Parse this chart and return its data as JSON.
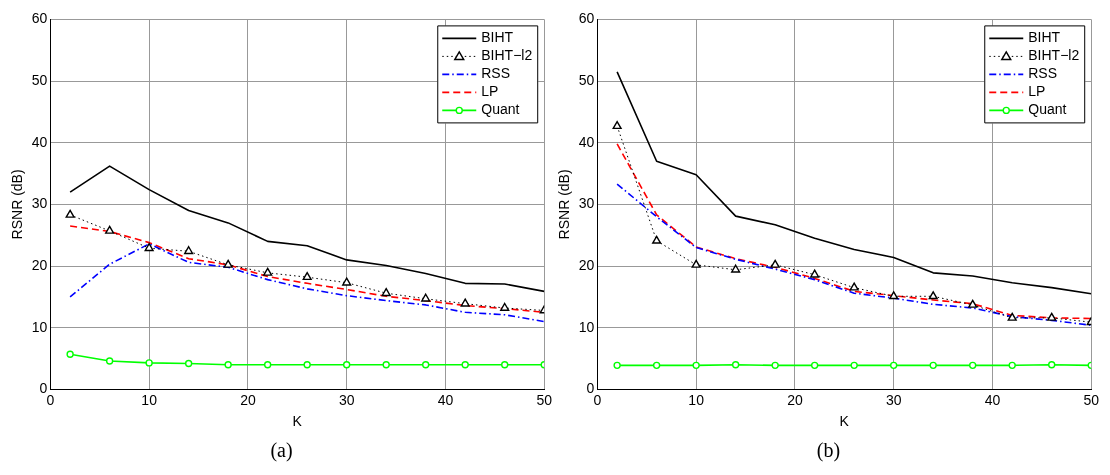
{
  "chart_data": [
    {
      "type": "line",
      "xlabel": "K",
      "ylabel": "RSNR (dB)",
      "annotations": [
        "(a)"
      ],
      "x": [
        2,
        6,
        10,
        14,
        18,
        22,
        26,
        30,
        34,
        38,
        42,
        46,
        50
      ],
      "xlim": [
        0,
        50
      ],
      "xticks": [
        0,
        10,
        20,
        30,
        40,
        50
      ],
      "ylim": [
        0,
        60
      ],
      "yticks": [
        0,
        10,
        20,
        30,
        40,
        50,
        60
      ],
      "grid": true,
      "legend": "top right",
      "series": [
        {
          "name": "BIHT",
          "color": "#000000",
          "line_style": "solid",
          "marker": "none",
          "values": [
            32,
            36.2,
            32.4,
            29,
            27,
            24,
            23.3,
            21,
            20.1,
            18.8,
            17.2,
            17.1,
            15.9
          ]
        },
        {
          "name": "BIHT−l2",
          "color": "#000000",
          "line_style": "dotted",
          "marker": "triangle",
          "values": [
            28.3,
            25.7,
            22.9,
            22.4,
            20.2,
            18.9,
            18.2,
            17.3,
            15.6,
            14.7,
            13.9,
            13.2,
            12.8
          ]
        },
        {
          "name": "RSS",
          "color": "#0000ff",
          "line_style": "dashdot",
          "marker": "none",
          "values": [
            15,
            20.3,
            23.6,
            20.6,
            19.8,
            17.8,
            16.3,
            15.2,
            14.4,
            13.7,
            12.5,
            12.1,
            11
          ]
        },
        {
          "name": "LP",
          "color": "#ff0000",
          "line_style": "dashed",
          "marker": "none",
          "values": [
            26.5,
            25.6,
            23.8,
            21.2,
            20.2,
            18.3,
            17.2,
            16.2,
            15.1,
            14.4,
            13.6,
            13.1,
            12.5
          ]
        },
        {
          "name": "Quant",
          "color": "#00ff00",
          "line_style": "solid",
          "marker": "circle",
          "values": [
            5.7,
            4.6,
            4.3,
            4.2,
            4,
            4,
            4,
            4,
            4,
            4,
            4,
            4,
            4
          ]
        }
      ]
    },
    {
      "type": "line",
      "xlabel": "K",
      "ylabel": "RSNR (dB)",
      "annotations": [
        "(b)"
      ],
      "x": [
        2,
        6,
        10,
        14,
        18,
        22,
        26,
        30,
        34,
        38,
        42,
        46,
        50
      ],
      "xlim": [
        0,
        50
      ],
      "xticks": [
        0,
        10,
        20,
        30,
        40,
        50
      ],
      "ylim": [
        0,
        60
      ],
      "yticks": [
        0,
        10,
        20,
        30,
        40,
        50,
        60
      ],
      "grid": true,
      "legend": "top right",
      "series": [
        {
          "name": "BIHT",
          "color": "#000000",
          "line_style": "solid",
          "marker": "none",
          "values": [
            51.5,
            37,
            34.8,
            28.1,
            26.7,
            24.5,
            22.7,
            21.4,
            18.9,
            18.4,
            17.3,
            16.5,
            15.5
          ]
        },
        {
          "name": "BIHT−l2",
          "color": "#000000",
          "line_style": "dotted",
          "marker": "triangle",
          "values": [
            42.7,
            24.1,
            20.2,
            19.4,
            20.2,
            18.6,
            16.5,
            15.1,
            15.1,
            13.7,
            11.6,
            11.6,
            10.9
          ]
        },
        {
          "name": "RSS",
          "color": "#0000ff",
          "line_style": "dashdot",
          "marker": "none",
          "values": [
            33.3,
            28,
            23,
            21.1,
            19.5,
            17.8,
            15.6,
            14.8,
            13.8,
            13.2,
            11.8,
            11.2,
            10.4
          ]
        },
        {
          "name": "LP",
          "color": "#ff0000",
          "line_style": "dashed",
          "marker": "none",
          "values": [
            39.8,
            28.3,
            23.1,
            21.2,
            19.8,
            18,
            15.9,
            15.2,
            14.5,
            13.9,
            12,
            11.6,
            11.5
          ]
        },
        {
          "name": "Quant",
          "color": "#00ff00",
          "line_style": "solid",
          "marker": "circle",
          "values": [
            3.9,
            3.9,
            3.9,
            4,
            3.9,
            3.9,
            3.9,
            3.9,
            3.9,
            3.9,
            3.9,
            4,
            3.9
          ]
        }
      ]
    }
  ]
}
